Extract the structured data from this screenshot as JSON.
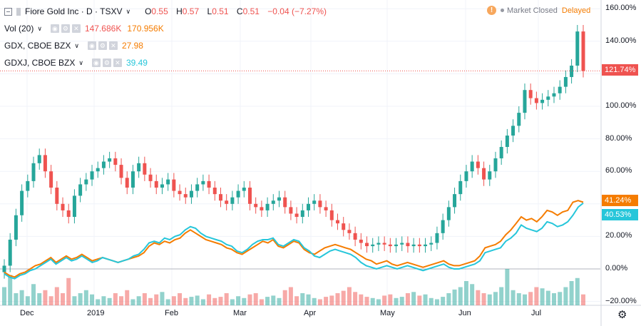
{
  "header": {
    "symbol": "Fiore Gold Inc · D · TSXV",
    "ohlc": {
      "o_label": "O",
      "o": "0.55",
      "h_label": "H",
      "h": "0.57",
      "l_label": "L",
      "l": "0.51",
      "c_label": "C",
      "c": "0.51",
      "change": "−0.04 (−7.27%)"
    },
    "status_text": "Market Closed",
    "delayed_text": "Delayed",
    "warn_glyph": "!"
  },
  "studies": [
    {
      "name": "Vol (20)",
      "values": [
        "147.686K",
        "170.956K"
      ],
      "colors": [
        "#ef5350",
        "#f57c00"
      ]
    },
    {
      "name": "GDX, CBOE BZX",
      "values": [
        "27.98"
      ],
      "colors": [
        "#f57c00"
      ]
    },
    {
      "name": "GDXJ, CBOE BZX",
      "values": [
        "39.49"
      ],
      "colors": [
        "#26c6da"
      ]
    }
  ],
  "chart_data": {
    "type": "line",
    "y_axis_ticks": [
      "160.00%",
      "140.00%",
      "120.00%",
      "100.00%",
      "80.00%",
      "60.00%",
      "40.00%",
      "20.00%",
      "0.00%",
      "−20.00%"
    ],
    "x_axis_ticks": [
      "Dec",
      "2019",
      "Feb",
      "Mar",
      "Apr",
      "May",
      "Jun",
      "Jul"
    ],
    "ylim": [
      -20,
      160
    ],
    "price_tags": [
      {
        "label": "121.74%",
        "value": 121.74,
        "color": "#ef5350"
      },
      {
        "label": "41.24%",
        "value": 41.24,
        "color": "#f57c00"
      },
      {
        "label": "40.53%",
        "value": 40.53,
        "color": "#26c6da"
      }
    ],
    "series": [
      {
        "name": "GDX, CBOE BZX",
        "color": "#f57c00",
        "values": [
          -2,
          -4,
          -5,
          -3,
          -2,
          0,
          2,
          3,
          5,
          7,
          4,
          6,
          8,
          6,
          7,
          9,
          7,
          5,
          6,
          7,
          6,
          5,
          4,
          5,
          6,
          7,
          8,
          10,
          14,
          16,
          15,
          17,
          16,
          18,
          19,
          22,
          24,
          22,
          20,
          18,
          17,
          16,
          15,
          13,
          12,
          10,
          9,
          11,
          13,
          15,
          17,
          16,
          18,
          14,
          13,
          15,
          17,
          16,
          12,
          10,
          9,
          11,
          13,
          14,
          15,
          14,
          13,
          12,
          10,
          8,
          6,
          5,
          3,
          4,
          5,
          3,
          2,
          3,
          4,
          3,
          2,
          1,
          2,
          3,
          4,
          5,
          3,
          2,
          2,
          3,
          4,
          5,
          8,
          13,
          14,
          15,
          17,
          21,
          24,
          28,
          32,
          30,
          31,
          29,
          32,
          36,
          35,
          33,
          35,
          36,
          41,
          42,
          41
        ]
      },
      {
        "name": "GDXJ, CBOE BZX",
        "color": "#26c6da",
        "values": [
          -3,
          -5,
          -6,
          -4,
          -3,
          -1,
          0,
          2,
          4,
          6,
          3,
          5,
          7,
          5,
          6,
          8,
          6,
          4,
          5,
          7,
          6,
          5,
          4,
          5,
          6,
          8,
          9,
          12,
          16,
          17,
          16,
          19,
          18,
          20,
          21,
          24,
          26,
          25,
          22,
          20,
          19,
          18,
          17,
          15,
          14,
          11,
          10,
          12,
          15,
          17,
          18,
          18,
          19,
          15,
          14,
          16,
          18,
          17,
          13,
          11,
          8,
          7,
          9,
          11,
          12,
          11,
          10,
          9,
          7,
          4,
          2,
          1,
          0,
          1,
          2,
          1,
          0,
          1,
          2,
          1,
          0,
          -1,
          0,
          1,
          2,
          3,
          1,
          0,
          0,
          1,
          2,
          3,
          5,
          10,
          11,
          12,
          13,
          17,
          19,
          22,
          27,
          25,
          24,
          23,
          25,
          29,
          28,
          26,
          27,
          29,
          33,
          38,
          40.5
        ]
      },
      {
        "name": "Fiore Gold Inc",
        "type": "candlestick",
        "color_up": "#26a69a",
        "color_down": "#ef5350",
        "close": [
          2,
          18,
          33,
          48,
          54,
          65,
          70,
          60,
          50,
          40,
          36,
          32,
          45,
          52,
          55,
          60,
          62,
          66,
          68,
          64,
          56,
          50,
          60,
          65,
          58,
          54,
          50,
          52,
          55,
          48,
          46,
          44,
          48,
          52,
          54,
          50,
          46,
          42,
          40,
          44,
          48,
          50,
          40,
          38,
          36,
          40,
          42,
          44,
          38,
          34,
          32,
          36,
          40,
          42,
          38,
          36,
          30,
          28,
          24,
          22,
          18,
          16,
          14,
          15,
          16,
          15,
          14,
          15,
          16,
          14,
          15,
          14,
          15,
          16,
          22,
          30,
          38,
          46,
          54,
          60,
          66,
          62,
          55,
          60,
          68,
          75,
          82,
          88,
          96,
          110,
          105,
          102,
          104,
          106,
          108,
          112,
          118,
          125,
          146,
          121.74
        ]
      },
      {
        "name": "Vol (20)",
        "type": "volume",
        "values": [
          30,
          50,
          20,
          25,
          15,
          35,
          20,
          25,
          15,
          30,
          20,
          45,
          15,
          20,
          25,
          18,
          10,
          15,
          12,
          20,
          15,
          25,
          10,
          15,
          20,
          12,
          18,
          22,
          10,
          15,
          20,
          12,
          14,
          16,
          10,
          18,
          12,
          14,
          20,
          10,
          15,
          12,
          18,
          20,
          10,
          14,
          16,
          12,
          25,
          30,
          15,
          20,
          18,
          12,
          10,
          14,
          16,
          20,
          24,
          30,
          22,
          18,
          14,
          12,
          10,
          16,
          18,
          12,
          14,
          20,
          22,
          16,
          18,
          12,
          10,
          14,
          20,
          26,
          30,
          40,
          35,
          25,
          20,
          18,
          22,
          30,
          60,
          25,
          20,
          18,
          22,
          30,
          28,
          24,
          20,
          22,
          30,
          40,
          45,
          18
        ]
      }
    ]
  }
}
